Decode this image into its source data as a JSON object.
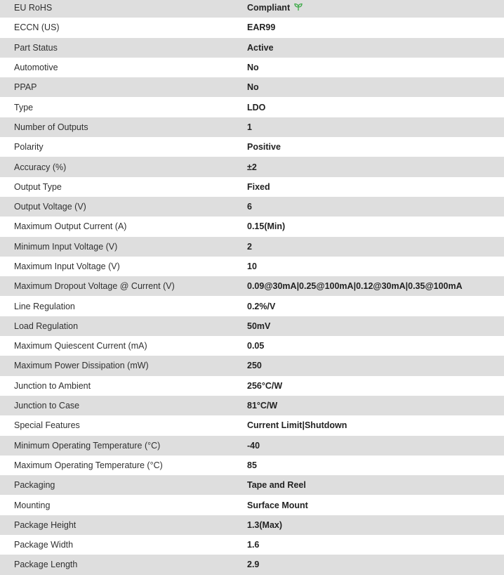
{
  "specs": [
    {
      "label": "EU RoHS",
      "value": "Compliant",
      "icon": "leaf-icon",
      "icon_color": "#3aa845"
    },
    {
      "label": "ECCN (US)",
      "value": "EAR99"
    },
    {
      "label": "Part Status",
      "value": "Active"
    },
    {
      "label": "Automotive",
      "value": "No"
    },
    {
      "label": "PPAP",
      "value": "No"
    },
    {
      "label": "Type",
      "value": "LDO"
    },
    {
      "label": "Number of Outputs",
      "value": "1"
    },
    {
      "label": "Polarity",
      "value": "Positive"
    },
    {
      "label": "Accuracy (%)",
      "value": "±2"
    },
    {
      "label": "Output Type",
      "value": "Fixed"
    },
    {
      "label": "Output Voltage (V)",
      "value": "6"
    },
    {
      "label": "Maximum Output Current (A)",
      "value": "0.15(Min)"
    },
    {
      "label": "Minimum Input Voltage (V)",
      "value": "2"
    },
    {
      "label": "Maximum Input Voltage (V)",
      "value": "10"
    },
    {
      "label": "Maximum Dropout Voltage @ Current (V)",
      "value": "0.09@30mA|0.25@100mA|0.12@30mA|0.35@100mA"
    },
    {
      "label": "Line Regulation",
      "value": "0.2%/V"
    },
    {
      "label": "Load Regulation",
      "value": "50mV"
    },
    {
      "label": "Maximum Quiescent Current (mA)",
      "value": "0.05"
    },
    {
      "label": "Maximum Power Dissipation (mW)",
      "value": "250"
    },
    {
      "label": "Junction to Ambient",
      "value": "256°C/W"
    },
    {
      "label": "Junction to Case",
      "value": "81°C/W"
    },
    {
      "label": "Special Features",
      "value": "Current Limit|Shutdown"
    },
    {
      "label": "Minimum Operating Temperature (°C)",
      "value": "-40"
    },
    {
      "label": "Maximum Operating Temperature (°C)",
      "value": "85"
    },
    {
      "label": "Packaging",
      "value": "Tape and Reel"
    },
    {
      "label": "Mounting",
      "value": "Surface Mount"
    },
    {
      "label": "Package Height",
      "value": "1.3(Max)"
    },
    {
      "label": "Package Width",
      "value": "1.6"
    },
    {
      "label": "Package Length",
      "value": "2.9"
    }
  ]
}
